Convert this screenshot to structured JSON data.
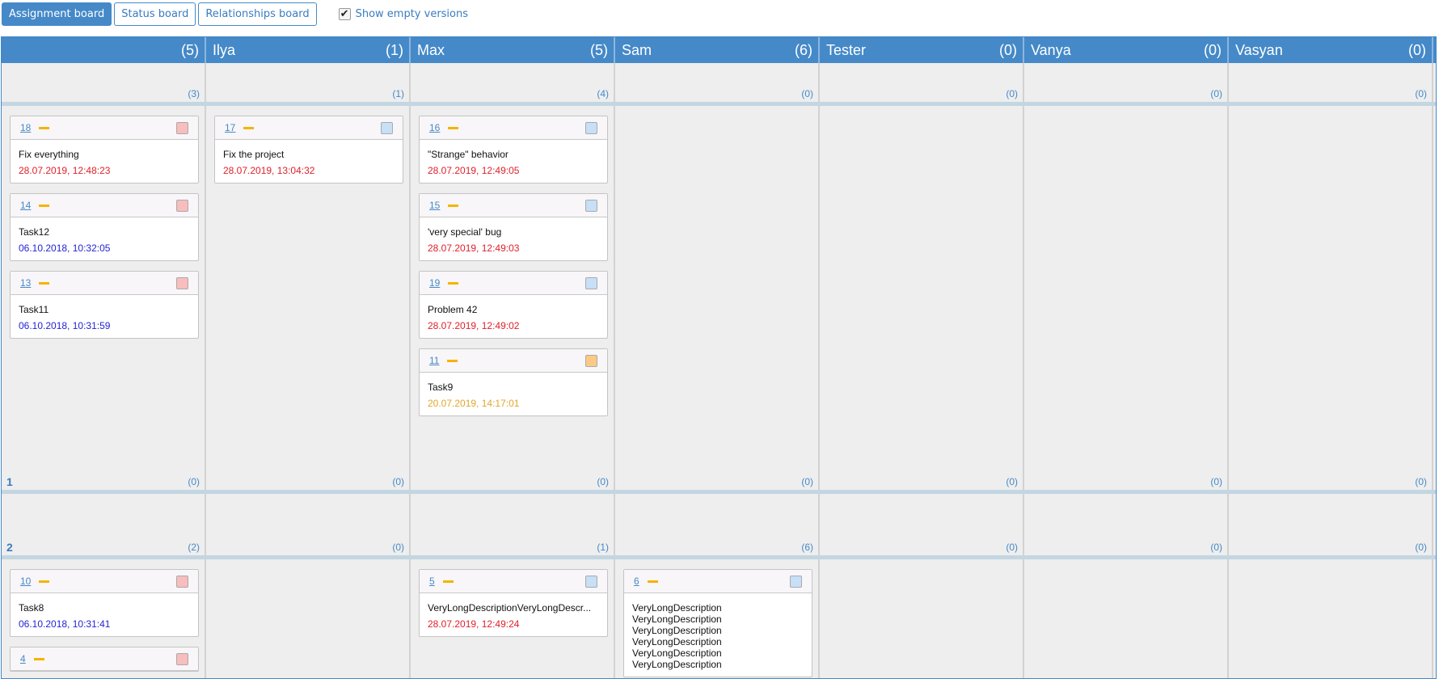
{
  "toolbar": {
    "tabs": [
      {
        "label": "Assignment board",
        "active": true
      },
      {
        "label": "Status board"
      },
      {
        "label": "Relationships board"
      }
    ],
    "show_empty": {
      "label": "Show empty versions",
      "checked": true
    }
  },
  "colors": {
    "header": "#4589c8",
    "red_date": "#e0202a",
    "blue_date": "#2323d6",
    "orange_date": "#e2a62c",
    "pink": "#f8bdbd",
    "lightblue": "#c7dff7",
    "orange": "#fdc986"
  },
  "columns": [
    {
      "name": "",
      "count": "(5)"
    },
    {
      "name": "Ilya",
      "count": "(1)"
    },
    {
      "name": "Max",
      "count": "(5)"
    },
    {
      "name": "Sam",
      "count": "(6)"
    },
    {
      "name": "Tester",
      "count": "(0)"
    },
    {
      "name": "Vanya",
      "count": "(0)"
    },
    {
      "name": "Vasyan",
      "count": "(0)"
    }
  ],
  "lanes": [
    {
      "label": "",
      "counts": [
        "(3)",
        "(1)",
        "(4)",
        "(0)",
        "(0)",
        "(0)",
        "(0)"
      ],
      "height": 48,
      "cards": [
        [],
        [],
        [],
        [],
        [],
        [],
        []
      ]
    },
    {
      "label": "1",
      "counts": [
        "(0)",
        "(0)",
        "(0)",
        "(0)",
        "(0)",
        "(0)",
        "(0)"
      ],
      "height": 475,
      "cards": [
        [
          {
            "id": "18",
            "title": "Fix everything",
            "date": "28.07.2019, 12:48:23",
            "date_color": "red",
            "square": "pink"
          },
          {
            "id": "14",
            "title": "Task12",
            "date": "06.10.2018, 10:32:05",
            "date_color": "blue",
            "square": "pink"
          },
          {
            "id": "13",
            "title": "Task11",
            "date": "06.10.2018, 10:31:59",
            "date_color": "blue",
            "square": "pink"
          }
        ],
        [
          {
            "id": "17",
            "title": "Fix the project",
            "date": "28.07.2019, 13:04:32",
            "date_color": "red",
            "square": "lightblue"
          }
        ],
        [
          {
            "id": "16",
            "title": "\"Strange\" behavior",
            "date": "28.07.2019, 12:49:05",
            "date_color": "red",
            "square": "lightblue"
          },
          {
            "id": "15",
            "title": "'very special' bug",
            "date": "28.07.2019, 12:49:03",
            "date_color": "red",
            "square": "lightblue"
          },
          {
            "id": "19",
            "title": "Problem 42",
            "date": "28.07.2019, 12:49:02",
            "date_color": "red",
            "square": "lightblue"
          },
          {
            "id": "11",
            "title": "Task9",
            "date": "20.07.2019, 14:17:01",
            "date_color": "orange",
            "square": "orange"
          }
        ],
        [],
        [],
        [],
        []
      ]
    },
    {
      "label": "2",
      "counts": [
        "(2)",
        "(0)",
        "(1)",
        "(6)",
        "(0)",
        "(0)",
        "(0)"
      ],
      "height": 76,
      "cards": [
        [],
        [],
        [],
        [],
        [],
        [],
        []
      ]
    },
    {
      "label": "",
      "counts": [],
      "height": 150,
      "cards": [
        [
          {
            "id": "10",
            "title": "Task8",
            "date": "06.10.2018, 10:31:41",
            "date_color": "blue",
            "square": "pink"
          },
          {
            "id": "4",
            "title": "",
            "date": "",
            "square": "pink"
          }
        ],
        [],
        [
          {
            "id": "5",
            "title": "VeryLongDescriptionVeryLongDescr...",
            "date": "28.07.2019, 12:49:24",
            "date_color": "red",
            "square": "lightblue"
          }
        ],
        [
          {
            "id": "6",
            "lines": [
              "VeryLongDescription",
              "VeryLongDescription",
              "VeryLongDescription",
              "VeryLongDescription",
              "VeryLongDescription",
              "VeryLongDescription"
            ],
            "square": "lightblue"
          }
        ],
        [],
        [],
        []
      ]
    }
  ]
}
